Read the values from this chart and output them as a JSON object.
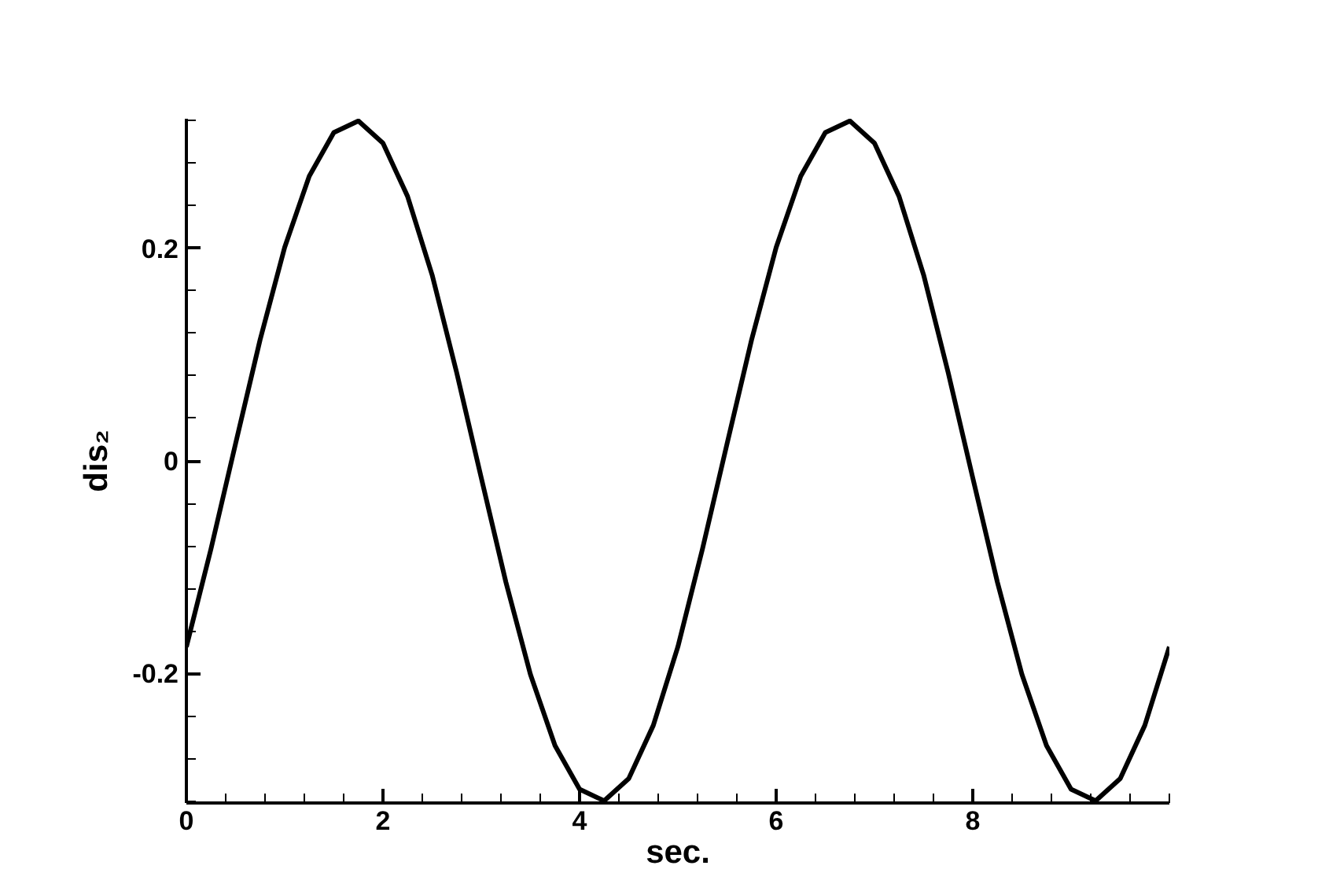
{
  "chart_data": {
    "type": "line",
    "xlabel": "sec.",
    "ylabel": "dis₂",
    "x": [
      0,
      0.25,
      0.5,
      0.75,
      1,
      1.25,
      1.5,
      1.75,
      2,
      2.25,
      2.5,
      2.75,
      3,
      3.25,
      3.5,
      3.75,
      4,
      4.25,
      4.5,
      4.75,
      5,
      5.25,
      5.5,
      5.75,
      6,
      6.25,
      6.5,
      6.75,
      7,
      7.25,
      7.5,
      7.75,
      8,
      8.25,
      8.5,
      8.75,
      9,
      9.25,
      9.5,
      9.75,
      10
    ],
    "series": [
      {
        "color": "#000000",
        "values": [
          -0.175,
          -0.083,
          0.016,
          0.114,
          0.201,
          0.268,
          0.309,
          0.32,
          0.299,
          0.249,
          0.175,
          0.083,
          -0.016,
          -0.114,
          -0.201,
          -0.268,
          -0.309,
          -0.32,
          -0.299,
          -0.249,
          -0.175,
          -0.083,
          0.016,
          0.114,
          0.201,
          0.268,
          0.309,
          0.32,
          0.299,
          0.249,
          0.175,
          0.083,
          -0.016,
          -0.114,
          -0.201,
          -0.268,
          -0.309,
          -0.32,
          -0.299,
          -0.249,
          -0.175
        ]
      }
    ],
    "xlim": [
      0,
      10
    ],
    "ylim": [
      -0.322,
      0.322
    ],
    "xticks": [
      0,
      2,
      4,
      6,
      8
    ],
    "yticks": [
      -0.2,
      0,
      0.2
    ],
    "grid": false
  }
}
